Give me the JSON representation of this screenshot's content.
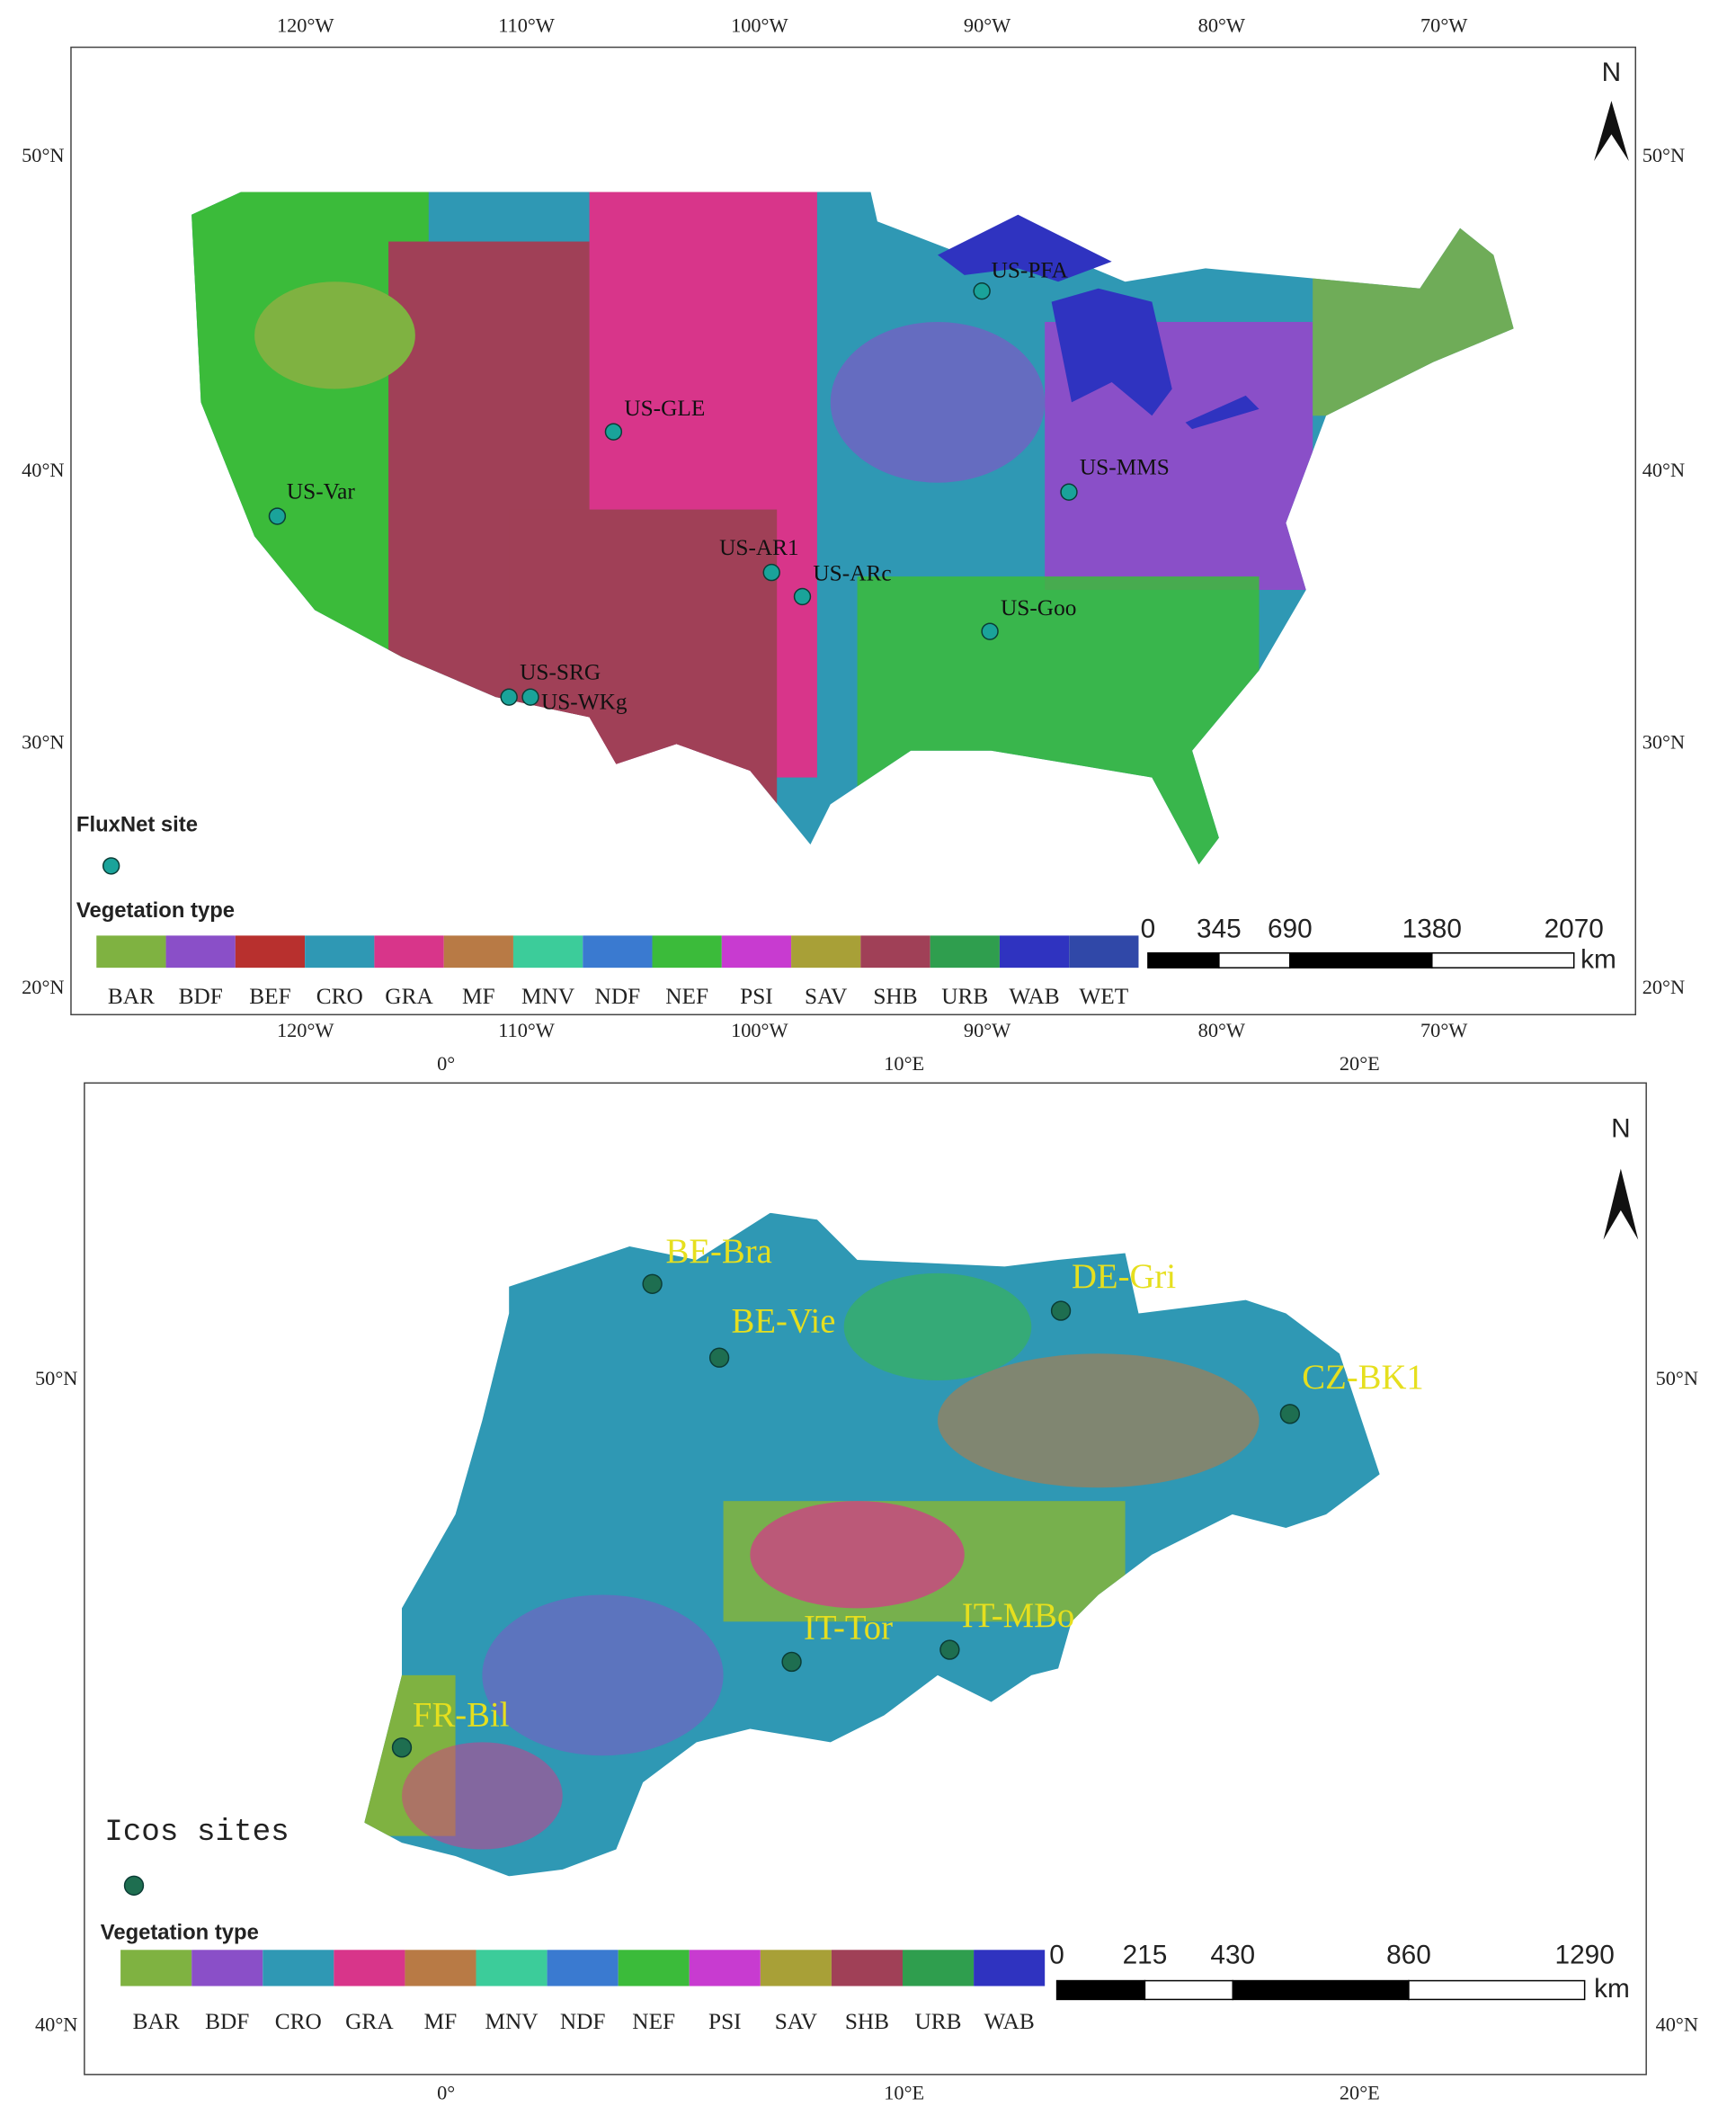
{
  "maps": [
    {
      "lon_ticks": [
        "120°W",
        "110°W",
        "100°W",
        "90°W",
        "80°W",
        "70°W"
      ],
      "lat_ticks": [
        "50°N",
        "40°N",
        "30°N",
        "20°N"
      ],
      "north": "N",
      "site_legend": "FluxNet site",
      "sites": [
        "US-PFA",
        "US-GLE",
        "US-Var",
        "US-MMS",
        "US-AR1",
        "US-ARc",
        "US-Goo",
        "US-SRG",
        "US-WKg"
      ],
      "legend_title": "Vegetation type",
      "vegetation_types": [
        {
          "name": "BAR",
          "color": "#7fb241"
        },
        {
          "name": "BDF",
          "color": "#8a4fc8"
        },
        {
          "name": "BEF",
          "color": "#b8302e"
        },
        {
          "name": "CRO",
          "color": "#2f98b4"
        },
        {
          "name": "GRA",
          "color": "#d8358a"
        },
        {
          "name": "MF",
          "color": "#b87a45"
        },
        {
          "name": "MNV",
          "color": "#3ccc9a"
        },
        {
          "name": "NDF",
          "color": "#3a7ad0"
        },
        {
          "name": "NEF",
          "color": "#3bbb3a"
        },
        {
          "name": "PSI",
          "color": "#c83bd0"
        },
        {
          "name": "SAV",
          "color": "#a8a037"
        },
        {
          "name": "SHB",
          "color": "#a04057"
        },
        {
          "name": "URB",
          "color": "#2f9e4e"
        },
        {
          "name": "WAB",
          "color": "#2f33c0"
        },
        {
          "name": "WET",
          "color": "#3048a8"
        }
      ],
      "scale_bar": {
        "ticks": [
          0,
          345,
          690,
          1380,
          2070
        ],
        "unit": "km"
      }
    },
    {
      "lon_ticks": [
        "0°",
        "10°E",
        "20°E"
      ],
      "lat_ticks": [
        "50°N",
        "40°N"
      ],
      "north": "N",
      "site_legend": "Icos sites",
      "sites": [
        "BE-Bra",
        "BE-Vie",
        "DE-Gri",
        "CZ-BK1",
        "IT-Tor",
        "IT-MBo",
        "FR-Bil"
      ],
      "legend_title": "Vegetation type",
      "vegetation_types": [
        {
          "name": "BAR",
          "color": "#7fb241"
        },
        {
          "name": "BDF",
          "color": "#8a4fc8"
        },
        {
          "name": "CRO",
          "color": "#2f98b4"
        },
        {
          "name": "GRA",
          "color": "#d8358a"
        },
        {
          "name": "MF",
          "color": "#b87a45"
        },
        {
          "name": "MNV",
          "color": "#3ccc9a"
        },
        {
          "name": "NDF",
          "color": "#3a7ad0"
        },
        {
          "name": "NEF",
          "color": "#3bbb3a"
        },
        {
          "name": "PSI",
          "color": "#c83bd0"
        },
        {
          "name": "SAV",
          "color": "#a8a037"
        },
        {
          "name": "SHB",
          "color": "#a04057"
        },
        {
          "name": "URB",
          "color": "#2f9e4e"
        },
        {
          "name": "WAB",
          "color": "#2f33c0"
        }
      ],
      "scale_bar": {
        "ticks": [
          0,
          215,
          430,
          860,
          1290
        ],
        "unit": "km"
      }
    }
  ]
}
